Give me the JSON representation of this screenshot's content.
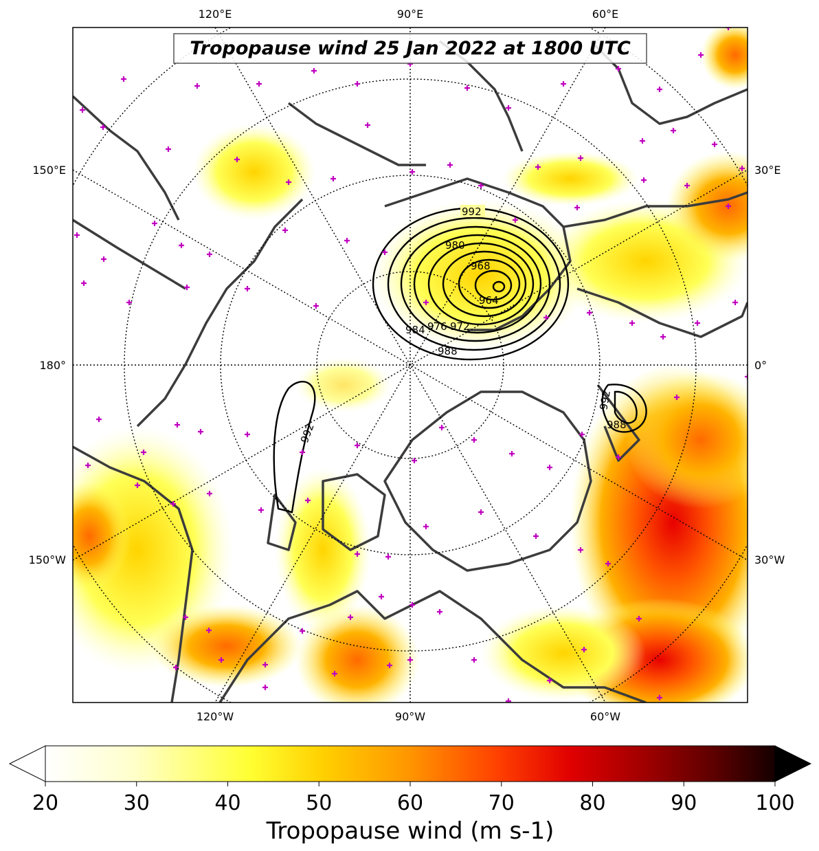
{
  "title": "Tropopause wind 25 Jan 2022 at 1800 UTC",
  "lon_labels": {
    "top": [
      "120°E",
      "90°E",
      "60°E"
    ],
    "bottom": [
      "120°W",
      "90°W",
      "60°W"
    ],
    "left": [
      "150°E",
      "180°",
      "150°W"
    ],
    "right": [
      "30°E",
      "0°",
      "30°W"
    ]
  },
  "pressure_contours": {
    "center_label": "964",
    "labels": [
      "992",
      "980",
      "968",
      "964",
      "976",
      "972",
      "984",
      "988",
      "992",
      "988",
      "992"
    ]
  },
  "colorbar": {
    "label": "Tropopause wind (m s-1)",
    "min": 20,
    "max": 100,
    "ticks": [
      "20",
      "30",
      "40",
      "50",
      "60",
      "70",
      "80",
      "90",
      "100"
    ],
    "extend": "both",
    "stops": [
      "#ffffff",
      "#ffffcc",
      "#ffff00",
      "#ffcc00",
      "#ff8c00",
      "#ff3300",
      "#e60000",
      "#990000",
      "#550000",
      "#000000"
    ]
  }
}
